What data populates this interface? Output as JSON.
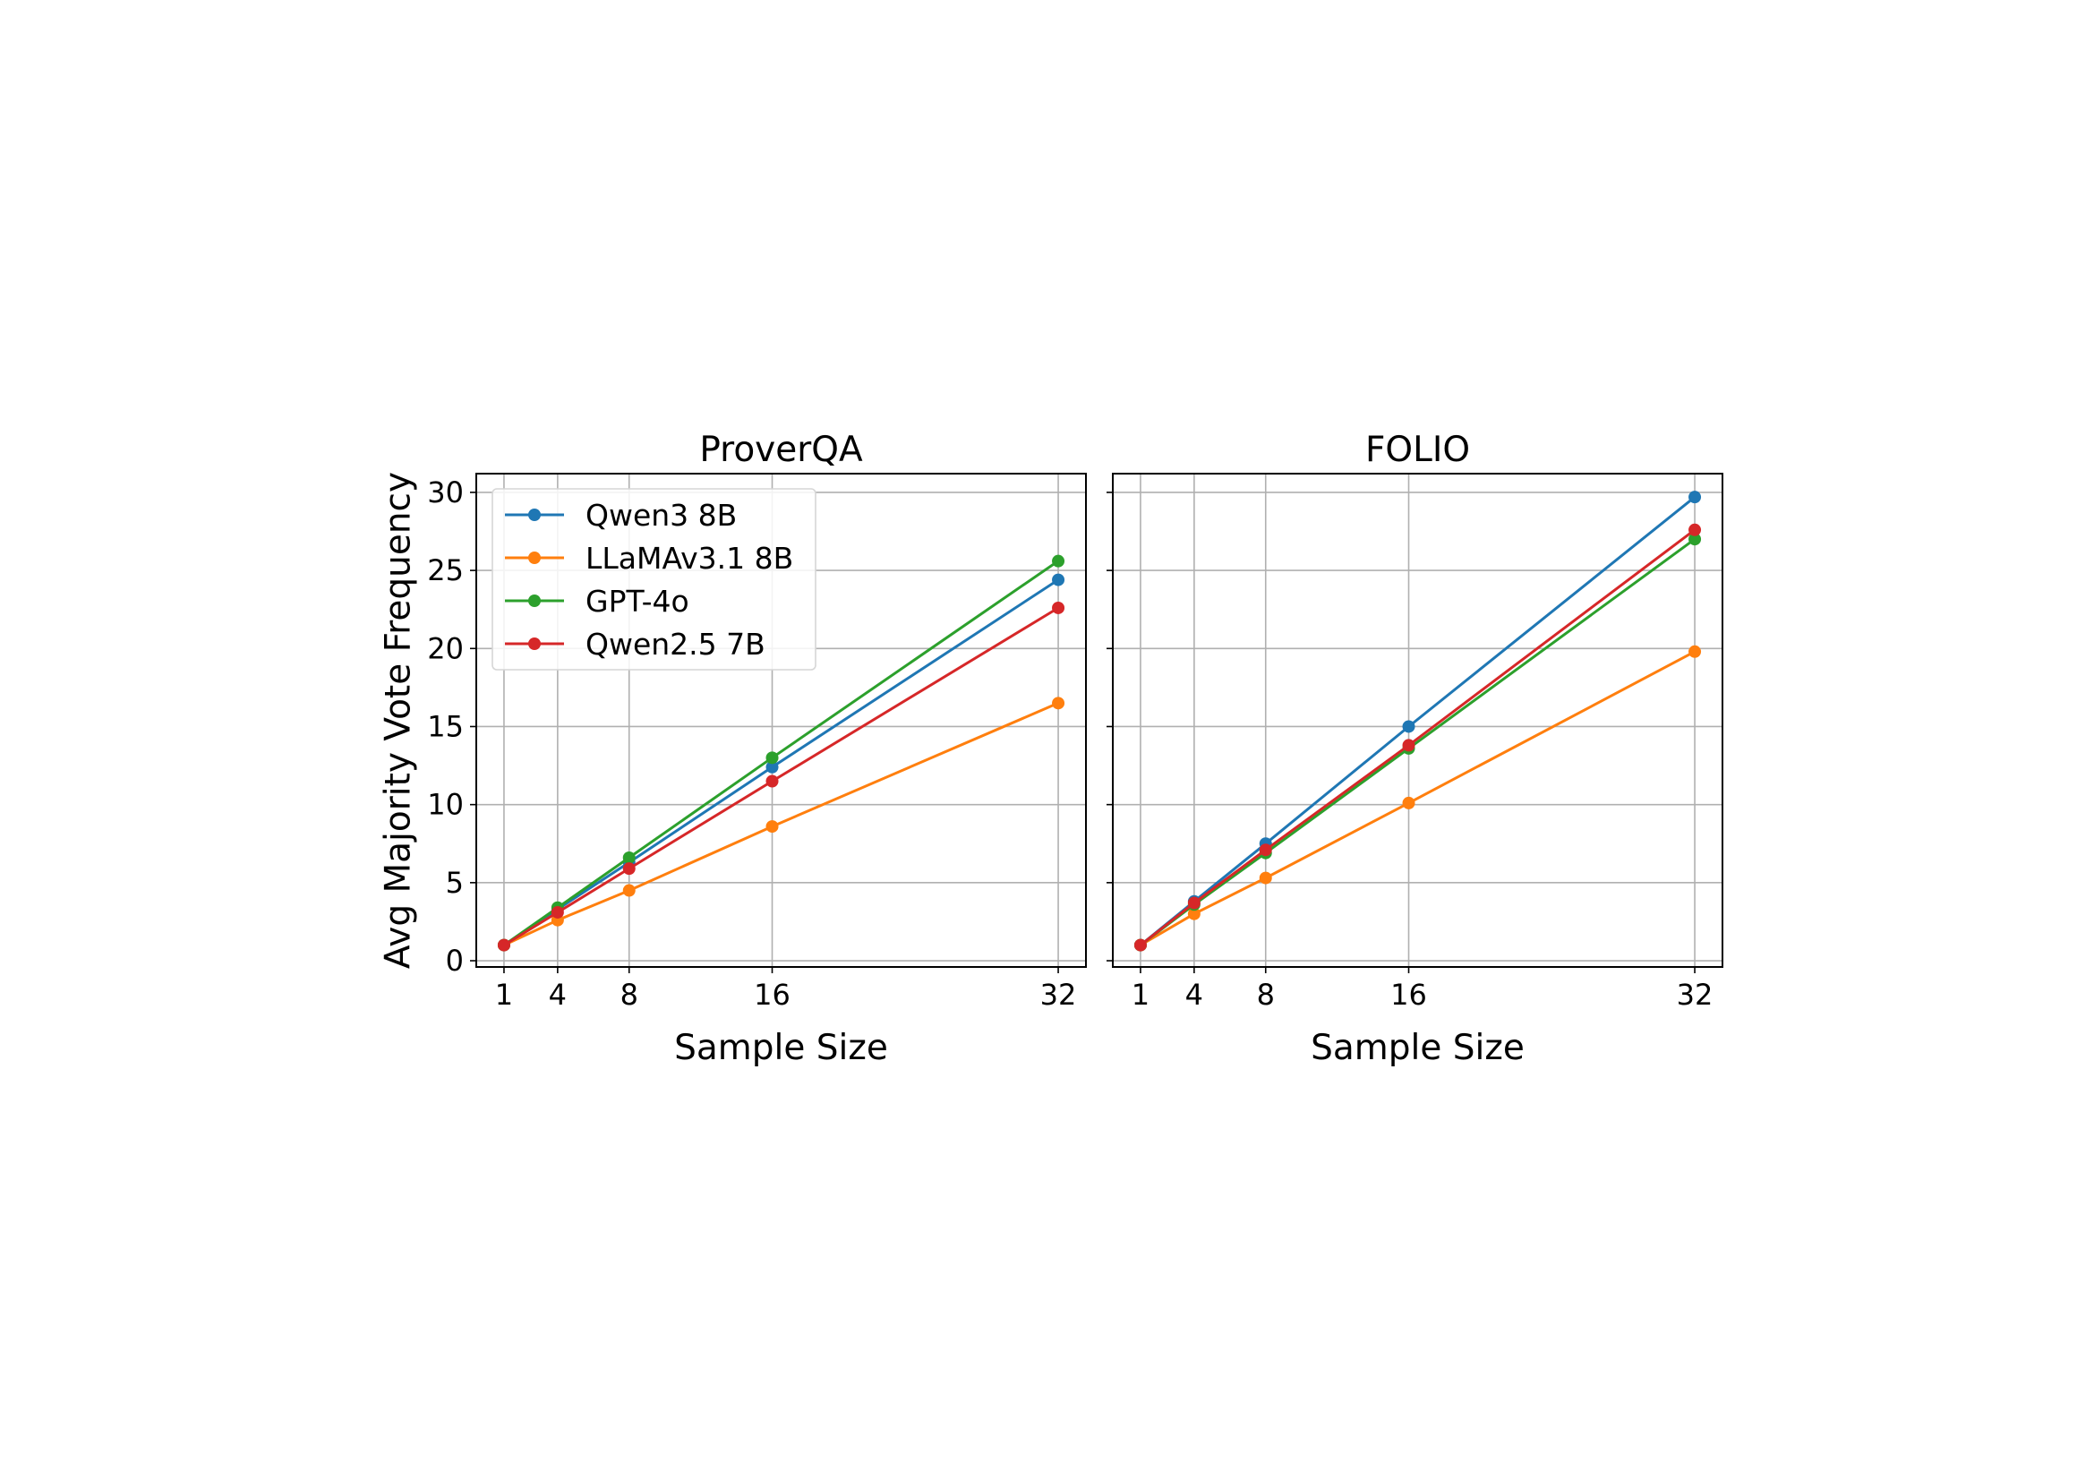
{
  "chart_data": [
    {
      "type": "line",
      "title": "ProverQA",
      "xlabel": "Sample Size",
      "ylabel": "Avg Majority Vote Frequency",
      "x": [
        1,
        4,
        8,
        16,
        32
      ],
      "xticks": [
        "1",
        "4",
        "8",
        "16",
        "32"
      ],
      "yticks": [
        "0",
        "5",
        "10",
        "15",
        "20",
        "25",
        "30"
      ],
      "xlim": [
        -0.55,
        33.55
      ],
      "ylim": [
        -0.4,
        31.2
      ],
      "grid": true,
      "legend_position": "upper left",
      "series": [
        {
          "name": "Qwen3 8B",
          "color": "#1f77b4",
          "values": [
            1.0,
            3.3,
            6.3,
            12.4,
            24.4
          ]
        },
        {
          "name": "LLaMAv3.1 8B",
          "color": "#ff7f0e",
          "values": [
            1.0,
            2.6,
            4.5,
            8.6,
            16.5
          ]
        },
        {
          "name": "GPT-4o",
          "color": "#2ca02c",
          "values": [
            1.0,
            3.4,
            6.6,
            13.0,
            25.6
          ]
        },
        {
          "name": "Qwen2.5 7B",
          "color": "#d62728",
          "values": [
            1.0,
            3.1,
            5.9,
            11.5,
            22.6
          ]
        }
      ]
    },
    {
      "type": "line",
      "title": "FOLIO",
      "xlabel": "Sample Size",
      "ylabel": "",
      "x": [
        1,
        4,
        8,
        16,
        32
      ],
      "xticks": [
        "1",
        "4",
        "8",
        "16",
        "32"
      ],
      "yticks": [],
      "xlim": [
        -0.55,
        33.55
      ],
      "ylim": [
        -0.4,
        31.2
      ],
      "grid": true,
      "legend_position": "",
      "series": [
        {
          "name": "Qwen3 8B",
          "color": "#1f77b4",
          "values": [
            1.0,
            3.8,
            7.5,
            15.0,
            29.7
          ]
        },
        {
          "name": "LLaMAv3.1 8B",
          "color": "#ff7f0e",
          "values": [
            1.0,
            3.0,
            5.3,
            10.1,
            19.8
          ]
        },
        {
          "name": "GPT-4o",
          "color": "#2ca02c",
          "values": [
            1.0,
            3.6,
            6.9,
            13.6,
            27.0
          ]
        },
        {
          "name": "Qwen2.5 7B",
          "color": "#d62728",
          "values": [
            1.0,
            3.7,
            7.1,
            13.8,
            27.6
          ]
        }
      ]
    }
  ]
}
